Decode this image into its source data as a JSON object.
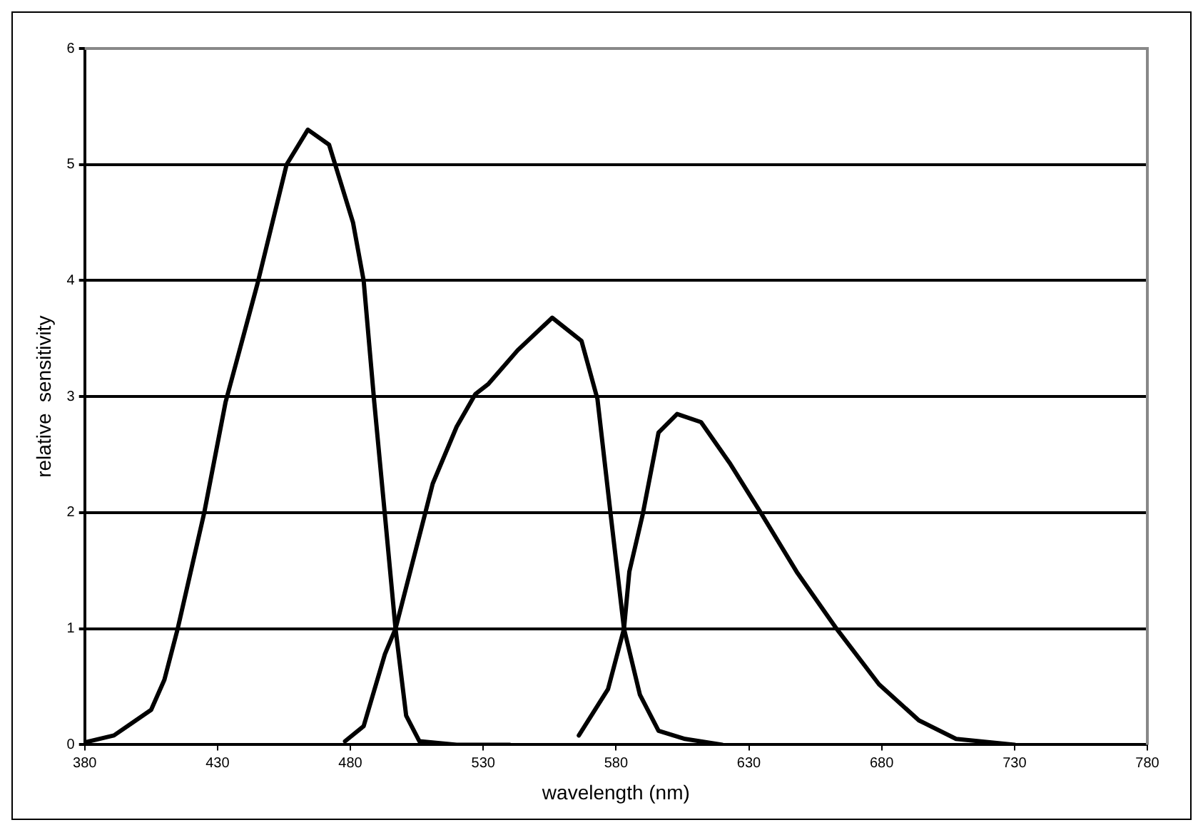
{
  "chart_data": {
    "type": "line",
    "xlabel": "wavelength (nm)",
    "ylabel": "relative  sensitivity",
    "xlim": [
      380,
      780
    ],
    "xticks": [
      380,
      430,
      480,
      530,
      580,
      630,
      680,
      730,
      780
    ],
    "ylim": [
      0,
      6
    ],
    "yticks": [
      0,
      1,
      2,
      3,
      4,
      5,
      6
    ],
    "grid": "y",
    "legend": false,
    "marker": "none",
    "line_style": "solid",
    "series": [
      {
        "color": "#000000",
        "x": [
          380,
          391,
          405,
          410,
          415,
          425,
          433,
          445,
          456,
          464,
          472,
          481,
          485,
          489,
          493,
          497,
          501,
          506,
          520,
          540
        ],
        "values": [
          0.02,
          0.08,
          0.3,
          0.56,
          1.0,
          2.0,
          2.95,
          3.97,
          5.0,
          5.3,
          5.17,
          4.5,
          4.0,
          2.95,
          1.98,
          1.0,
          0.25,
          0.03,
          0,
          0
        ]
      },
      {
        "color": "#000000",
        "x": [
          478,
          485,
          493,
          497,
          508,
          511,
          520,
          527,
          532,
          543,
          556,
          567,
          573,
          578,
          583,
          589,
          596,
          606,
          620
        ],
        "values": [
          0.03,
          0.16,
          0.78,
          1.0,
          1.98,
          2.25,
          2.74,
          3.02,
          3.11,
          3.4,
          3.68,
          3.48,
          2.98,
          1.98,
          1.0,
          0.43,
          0.12,
          0.05,
          0
        ]
      },
      {
        "color": "#000000",
        "x": [
          566,
          577,
          583,
          585,
          590,
          596,
          603,
          612,
          623,
          635,
          648,
          663,
          679,
          694,
          708,
          730
        ],
        "values": [
          0.08,
          0.48,
          1.0,
          1.49,
          1.98,
          2.69,
          2.85,
          2.78,
          2.42,
          1.98,
          1.49,
          1.0,
          0.52,
          0.21,
          0.05,
          0
        ]
      }
    ]
  }
}
